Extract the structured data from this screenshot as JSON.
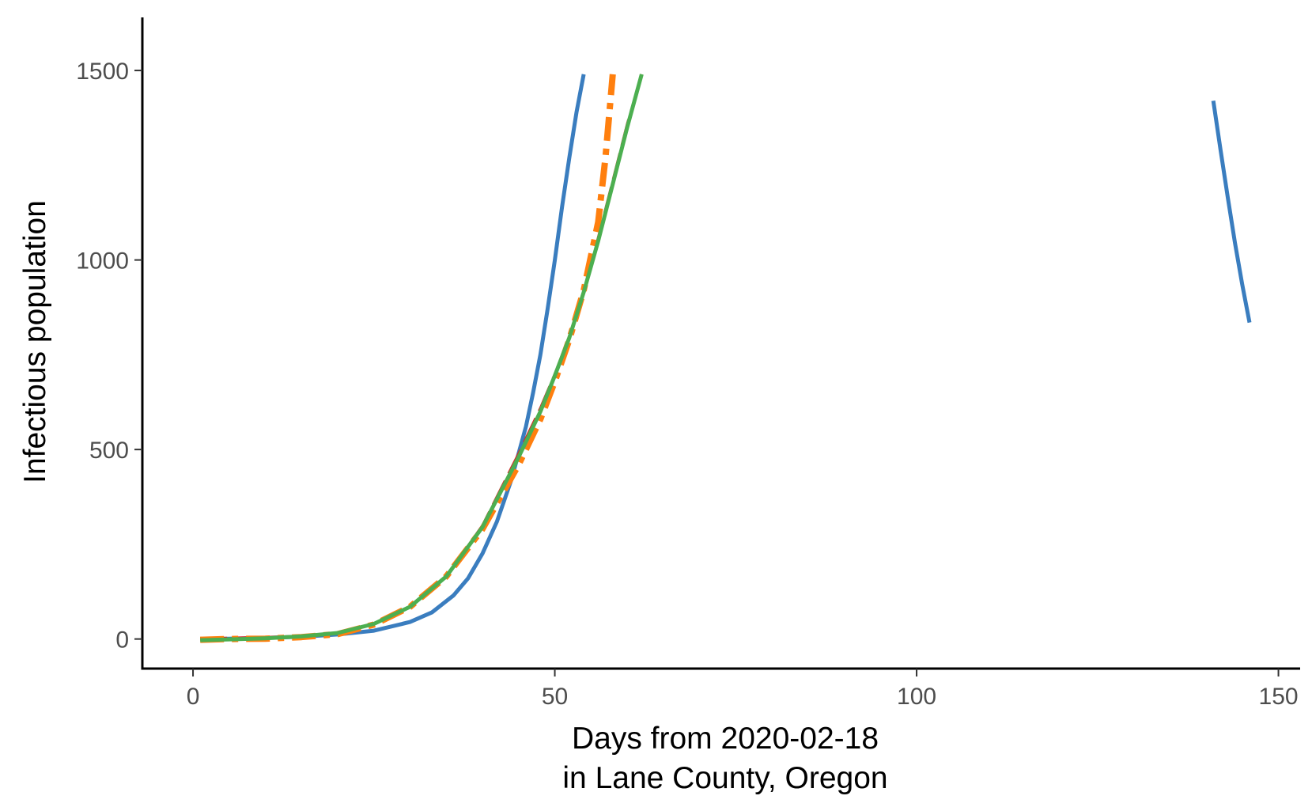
{
  "chart_data": {
    "type": "line",
    "title": "",
    "xlabel_lines": [
      "Days from 2020-02-18",
      "in Lane County, Oregon"
    ],
    "ylabel": "Infectious population",
    "xlim": [
      -7,
      153
    ],
    "ylim": [
      -78,
      1640
    ],
    "x_ticks": [
      0,
      50,
      100,
      150
    ],
    "y_ticks": [
      0,
      500,
      1000,
      1500
    ],
    "grid": false,
    "legend": "none",
    "series": [
      {
        "color": "#3a7dbf",
        "dash": "solid",
        "width": 5,
        "segments": [
          {
            "x": [
              1,
              5,
              10,
              15,
              20,
              25,
              30,
              33,
              36,
              38,
              40,
              42,
              44,
              46,
              47,
              48,
              49,
              50,
              51,
              52,
              53,
              54
            ],
            "y": [
              0,
              1,
              3,
              6,
              12,
              22,
              45,
              70,
              115,
              160,
              225,
              310,
              420,
              560,
              650,
              750,
              870,
              1000,
              1140,
              1270,
              1390,
              1490
            ]
          },
          {
            "x": [
              141,
              142,
              143,
              144,
              145,
              146
            ],
            "y": [
              1420,
              1290,
              1165,
              1045,
              935,
              835
            ]
          }
        ]
      },
      {
        "color": "#d62728",
        "dash": "long-dash",
        "width": 3,
        "segments": [
          {
            "x": [
              1,
              5,
              10,
              15,
              20,
              25,
              30,
              35,
              40,
              45,
              48,
              50,
              52,
              54,
              56,
              58,
              60,
              62
            ],
            "y": [
              2,
              3,
              5,
              8,
              15,
              40,
              85,
              165,
              300,
              490,
              610,
              700,
              800,
              920,
              1060,
              1210,
              1360,
              1490
            ]
          }
        ]
      },
      {
        "color": "#ff7f0e",
        "dash": "dash-dot",
        "width": 8,
        "segments": [
          {
            "x": [
              1,
              5,
              10,
              15,
              20,
              25,
              30,
              35,
              40,
              45,
              48,
              50,
              52,
              54,
              56,
              57,
              58
            ],
            "y": [
              -2,
              0,
              1,
              5,
              13,
              38,
              85,
              165,
              290,
              460,
              580,
              680,
              790,
              920,
              1100,
              1270,
              1490
            ]
          }
        ]
      },
      {
        "color": "#4caf50",
        "dash": "solid",
        "width": 5,
        "segments": [
          {
            "x": [
              1,
              5,
              10,
              15,
              20,
              25,
              30,
              35,
              40,
              45,
              48,
              50,
              52,
              54,
              56,
              58,
              60,
              62
            ],
            "y": [
              -3,
              -1,
              2,
              7,
              16,
              40,
              85,
              165,
              295,
              480,
              600,
              695,
              795,
              915,
              1050,
              1200,
              1350,
              1490
            ]
          }
        ]
      }
    ]
  }
}
